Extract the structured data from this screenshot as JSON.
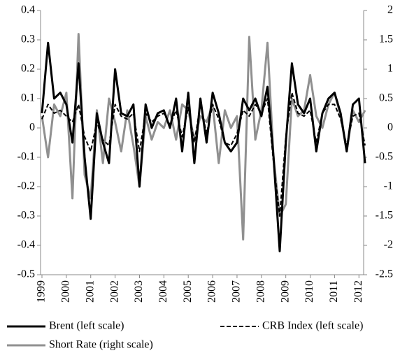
{
  "chart_data": {
    "type": "line",
    "x": [
      1999,
      1999.25,
      1999.5,
      1999.75,
      2000,
      2000.25,
      2000.5,
      2000.75,
      2001,
      2001.25,
      2001.5,
      2001.75,
      2002,
      2002.25,
      2002.5,
      2002.75,
      2003,
      2003.25,
      2003.5,
      2003.75,
      2004,
      2004.25,
      2004.5,
      2004.75,
      2005,
      2005.25,
      2005.5,
      2005.75,
      2006,
      2006.25,
      2006.5,
      2006.75,
      2007,
      2007.25,
      2007.5,
      2007.75,
      2008,
      2008.25,
      2008.5,
      2008.75,
      2009,
      2009.25,
      2009.5,
      2009.75,
      2010,
      2010.25,
      2010.5,
      2010.75,
      2011,
      2011.25,
      2011.5,
      2011.75,
      2012,
      2012.25
    ],
    "series": [
      {
        "name": "Brent (left scale)",
        "color": "#000000",
        "dash": false,
        "width": 3,
        "values": [
          0.05,
          0.29,
          0.1,
          0.12,
          0.08,
          -0.05,
          0.22,
          -0.1,
          -0.31,
          0.05,
          -0.05,
          -0.12,
          0.2,
          0.05,
          0.04,
          0.08,
          -0.2,
          0.08,
          0.0,
          0.05,
          0.06,
          0.0,
          0.1,
          -0.08,
          0.12,
          -0.12,
          0.1,
          -0.05,
          0.12,
          0.05,
          -0.05,
          -0.08,
          -0.05,
          0.1,
          0.06,
          0.1,
          0.04,
          0.14,
          -0.1,
          -0.42,
          -0.05,
          0.22,
          0.08,
          0.05,
          0.1,
          -0.08,
          0.05,
          0.1,
          0.12,
          0.05,
          -0.08,
          0.08,
          0.1,
          -0.12
        ]
      },
      {
        "name": "CRB Index (left scale)",
        "color": "#000000",
        "dash": true,
        "width": 2,
        "values": [
          0.03,
          0.08,
          0.05,
          0.06,
          0.04,
          0.02,
          0.08,
          -0.03,
          -0.08,
          0.02,
          -0.04,
          -0.06,
          0.08,
          0.04,
          0.03,
          0.05,
          -0.08,
          0.05,
          0.02,
          0.04,
          0.05,
          0.01,
          0.06,
          -0.03,
          0.07,
          -0.05,
          0.08,
          -0.02,
          0.08,
          0.03,
          -0.05,
          -0.06,
          -0.02,
          0.06,
          0.04,
          0.08,
          0.05,
          0.1,
          -0.12,
          -0.3,
          -0.03,
          0.12,
          0.05,
          0.04,
          0.06,
          -0.05,
          0.05,
          0.08,
          0.08,
          0.03,
          -0.06,
          0.04,
          0.05,
          -0.06
        ]
      },
      {
        "name": "Short Rate (right scale)",
        "color": "#909090",
        "dash": false,
        "width": 3,
        "axis": "y2",
        "values": [
          0.2,
          -0.5,
          0.4,
          0.2,
          0.6,
          -1.2,
          1.6,
          -0.8,
          -1.2,
          0.3,
          -0.6,
          0.5,
          0.1,
          -0.4,
          0.3,
          -0.3,
          -1.0,
          0.2,
          -0.2,
          0.1,
          0.0,
          0.3,
          -0.2,
          0.4,
          0.3,
          -0.2,
          0.2,
          0.1,
          0.4,
          -0.6,
          0.3,
          0.0,
          0.2,
          -1.9,
          1.55,
          -0.2,
          0.3,
          1.45,
          -0.5,
          -1.5,
          -1.3,
          0.5,
          0.2,
          0.3,
          0.9,
          0.2,
          0.0,
          0.4,
          0.6,
          0.2,
          -0.4,
          0.3,
          0.1,
          0.3
        ]
      }
    ],
    "xlim": [
      1999,
      2012.25
    ],
    "xticks": [
      1999,
      2000,
      2001,
      2002,
      2003,
      2004,
      2005,
      2006,
      2007,
      2008,
      2009,
      2010,
      2011,
      2012
    ],
    "ylim": [
      -0.5,
      0.4
    ],
    "yticks": [
      0.4,
      0.3,
      0.2,
      0.1,
      0,
      -0.1,
      -0.2,
      -0.3,
      -0.4,
      -0.5
    ],
    "y2lim": [
      -2.5,
      2
    ],
    "y2ticks": [
      2,
      1.5,
      1,
      0.5,
      0,
      -0.5,
      -1,
      -1.5,
      -2,
      -2.5
    ]
  }
}
